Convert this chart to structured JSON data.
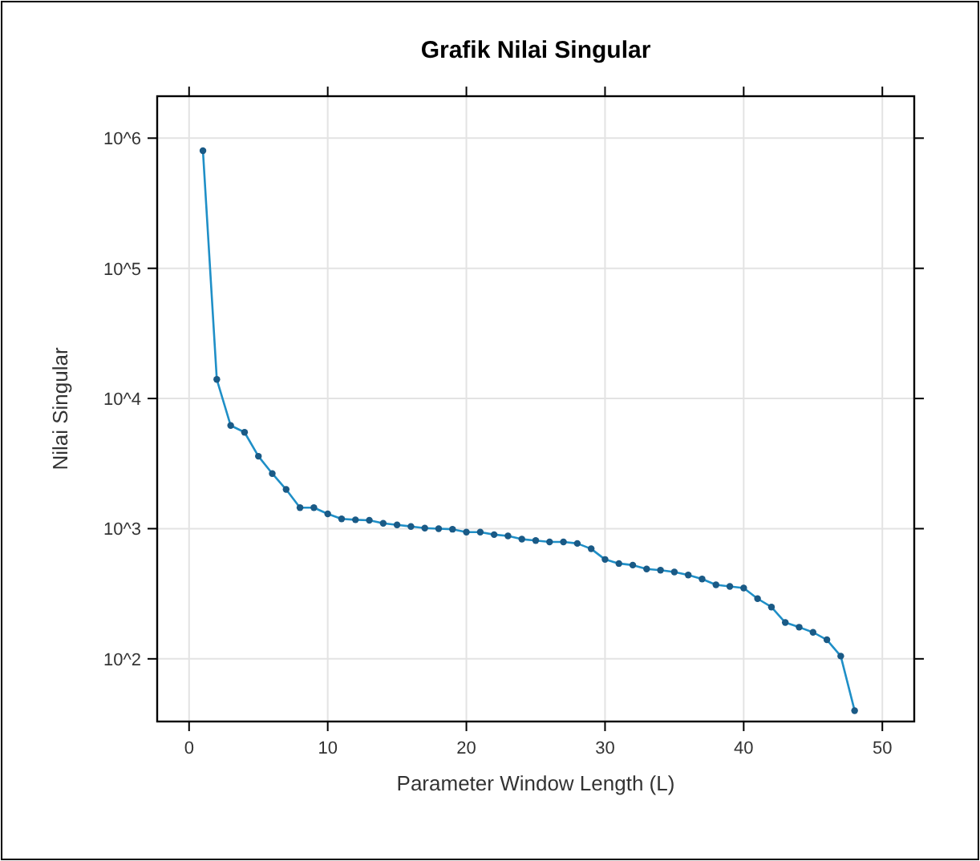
{
  "chart_data": {
    "type": "line",
    "title": "Grafik Nilai Singular",
    "xlabel": "Parameter Window Length (L)",
    "ylabel": "Nilai Singular",
    "log": "y",
    "grid": true,
    "marker": "circle",
    "line_style": "solid",
    "xlim": [
      -2.3,
      52.3
    ],
    "xticks": [
      0,
      10,
      20,
      30,
      40,
      50
    ],
    "ylim": [
      33,
      2100000
    ],
    "yticks": [
      {
        "value": 100,
        "label": "10^2"
      },
      {
        "value": 1000,
        "label": "10^3"
      },
      {
        "value": 10000,
        "label": "10^4"
      },
      {
        "value": 100000,
        "label": "10^5"
      },
      {
        "value": 1000000,
        "label": "10^6"
      }
    ],
    "x": [
      1,
      2,
      3,
      4,
      5,
      6,
      7,
      8,
      9,
      10,
      11,
      12,
      13,
      14,
      15,
      16,
      17,
      18,
      19,
      20,
      21,
      22,
      23,
      24,
      25,
      26,
      27,
      28,
      29,
      30,
      31,
      32,
      33,
      34,
      35,
      36,
      37,
      38,
      39,
      40,
      41,
      42,
      43,
      44,
      45,
      46,
      47,
      48
    ],
    "series": [
      {
        "color": "#1f8fc7",
        "values": [
          800000,
          14000,
          6200,
          5500,
          3600,
          2650,
          2000,
          1450,
          1450,
          1300,
          1190,
          1170,
          1160,
          1100,
          1070,
          1040,
          1010,
          1000,
          990,
          940,
          940,
          900,
          880,
          830,
          810,
          790,
          790,
          770,
          700,
          580,
          540,
          525,
          490,
          480,
          465,
          440,
          410,
          370,
          360,
          350,
          290,
          250,
          190,
          175,
          160,
          140,
          105,
          40
        ]
      }
    ]
  }
}
